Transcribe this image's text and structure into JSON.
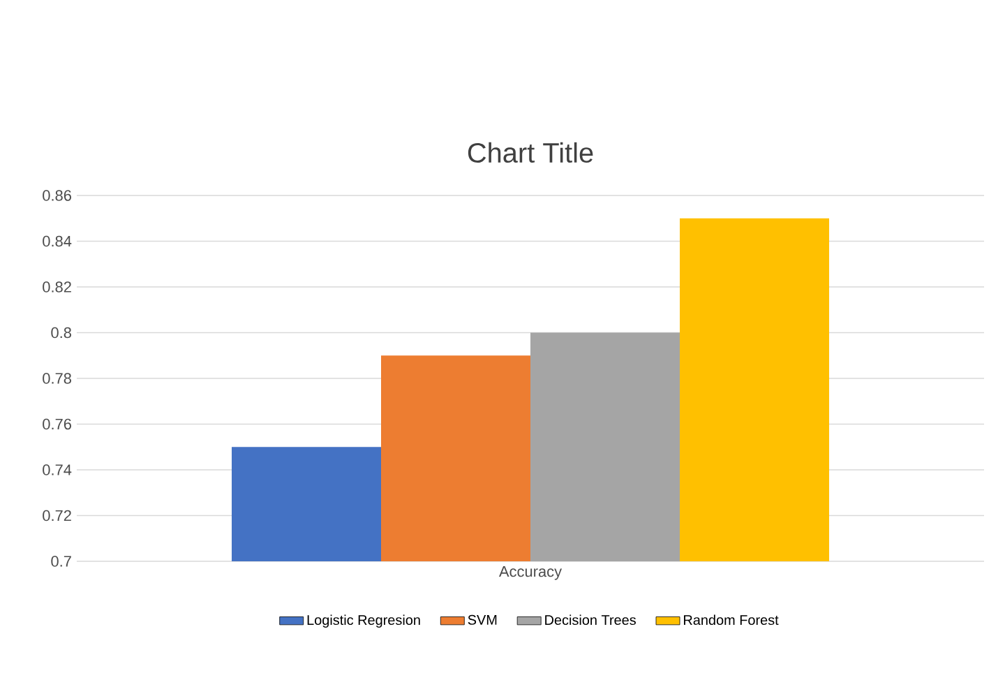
{
  "chart_data": {
    "type": "bar",
    "title": "Chart Title",
    "categories": [
      "Accuracy"
    ],
    "series": [
      {
        "name": "Logistic Regresion",
        "color": "#4472c4",
        "values": [
          0.75
        ]
      },
      {
        "name": "SVM",
        "color": "#ed7d31",
        "values": [
          0.79
        ]
      },
      {
        "name": "Decision Trees",
        "color": "#a5a5a5",
        "values": [
          0.8
        ]
      },
      {
        "name": "Random Forest",
        "color": "#ffc000",
        "values": [
          0.85
        ]
      }
    ],
    "ylim": [
      0.7,
      0.86
    ],
    "yticks": [
      0.7,
      0.72,
      0.74,
      0.76,
      0.78,
      0.8,
      0.82,
      0.84,
      0.86
    ],
    "grid": "y",
    "legend": "bottom"
  }
}
